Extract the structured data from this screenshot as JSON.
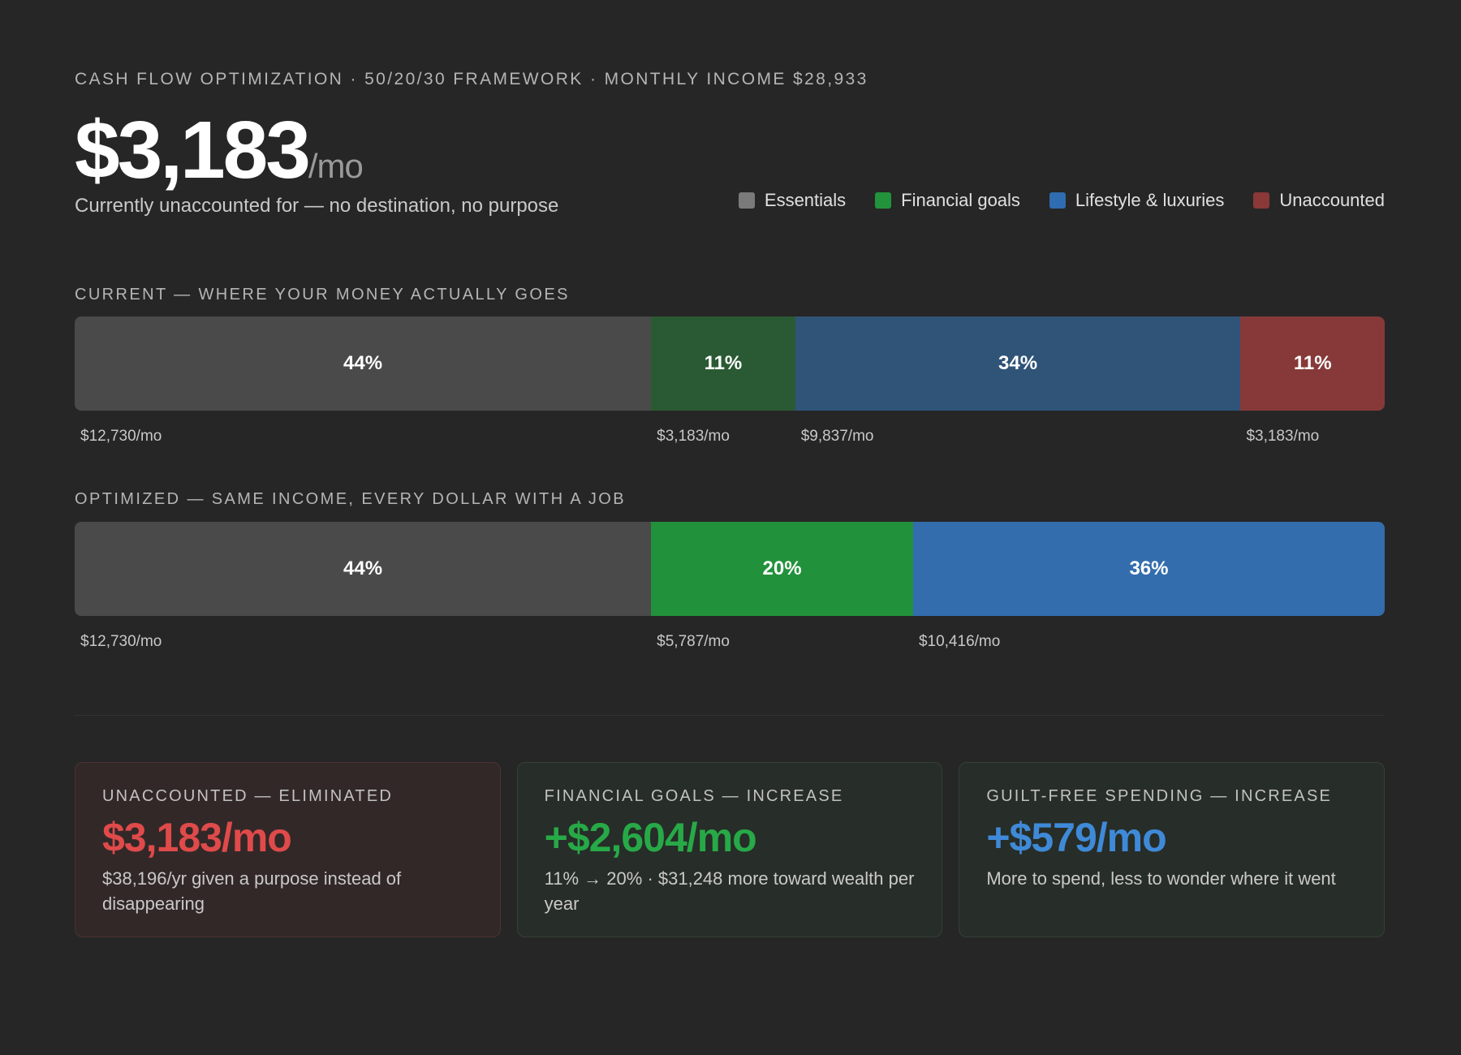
{
  "header": {
    "eyebrow": "CASH FLOW OPTIMIZATION · 50/20/30 FRAMEWORK · MONTHLY INCOME $28,933",
    "big_value": "$3,183",
    "big_unit": "/mo",
    "subtitle": "Currently unaccounted for — no destination, no purpose"
  },
  "legend": [
    {
      "label": "Essentials",
      "color": "#7a7a7a"
    },
    {
      "label": "Financial goals",
      "color": "#22933c"
    },
    {
      "label": "Lifestyle & luxuries",
      "color": "#2f6cb0"
    },
    {
      "label": "Unaccounted",
      "color": "#8a3838"
    }
  ],
  "chart_data": {
    "type": "bar",
    "orientation": "horizontal-stacked-100",
    "series": [
      {
        "name": "CURRENT — WHERE YOUR MONEY ACTUALLY GOES",
        "segments": [
          {
            "category": "Essentials",
            "percent": 44,
            "label": "44%",
            "amount": "$12,730/mo",
            "color": "#4a4a4a"
          },
          {
            "category": "Financial goals",
            "percent": 11,
            "label": "11%",
            "amount": "$3,183/mo",
            "color": "#2a5a33"
          },
          {
            "category": "Lifestyle & luxuries",
            "percent": 34,
            "label": "34%",
            "amount": "$9,837/mo",
            "color": "#2f5478"
          },
          {
            "category": "Unaccounted",
            "percent": 11,
            "label": "11%",
            "amount": "$3,183/mo",
            "color": "#873939"
          }
        ]
      },
      {
        "name": "OPTIMIZED — SAME INCOME, EVERY DOLLAR WITH A JOB",
        "segments": [
          {
            "category": "Essentials",
            "percent": 44,
            "label": "44%",
            "amount": "$12,730/mo",
            "color": "#4a4a4a"
          },
          {
            "category": "Financial goals",
            "percent": 20,
            "label": "20%",
            "amount": "$5,787/mo",
            "color": "#22913b"
          },
          {
            "category": "Lifestyle & luxuries",
            "percent": 36,
            "label": "36%",
            "amount": "$10,416/mo",
            "color": "#336dad"
          }
        ]
      }
    ]
  },
  "cards": [
    {
      "title": "UNACCOUNTED — ELIMINATED",
      "value": "$3,183/mo",
      "desc": "$38,196/yr given a purpose instead of disappearing",
      "color": "#e04a4a"
    },
    {
      "title": "FINANCIAL GOALS — INCREASE",
      "value": "+$2,604/mo",
      "desc": "11% → 20% · $31,248 more toward wealth per year",
      "color": "#27a947"
    },
    {
      "title": "GUILT-FREE SPENDING — INCREASE",
      "value": "+$579/mo",
      "desc": "More to spend, less to wonder where it went",
      "color": "#3f8ad8"
    }
  ]
}
